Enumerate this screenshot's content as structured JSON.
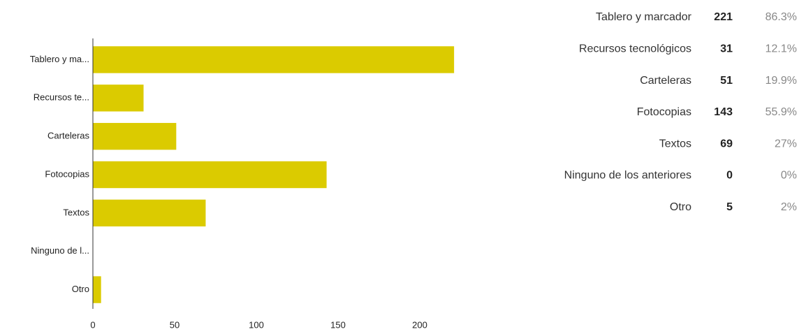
{
  "chart_data": {
    "type": "bar",
    "orientation": "horizontal",
    "categories": [
      "Tablero y ma...",
      "Recursos te...",
      "Carteleras",
      "Fotocopias",
      "Textos",
      "Ninguno de l...",
      "Otro"
    ],
    "values": [
      221,
      31,
      51,
      143,
      69,
      0,
      5
    ],
    "color": "#dbcb00",
    "xlim": [
      0,
      230
    ],
    "xticks": [
      0,
      50,
      100,
      150,
      200
    ],
    "grid": false
  },
  "table": {
    "rows": [
      [
        "Tablero y marcador",
        221,
        "86.3%"
      ],
      [
        "Recursos tecnológicos",
        31,
        "12.1%"
      ],
      [
        "Carteleras",
        51,
        "19.9%"
      ],
      [
        "Fotocopias",
        143,
        "55.9%"
      ],
      [
        "Textos",
        69,
        "27%"
      ],
      [
        "Ninguno de los anteriores",
        0,
        "0%"
      ],
      [
        "Otro",
        5,
        "2%"
      ]
    ]
  }
}
